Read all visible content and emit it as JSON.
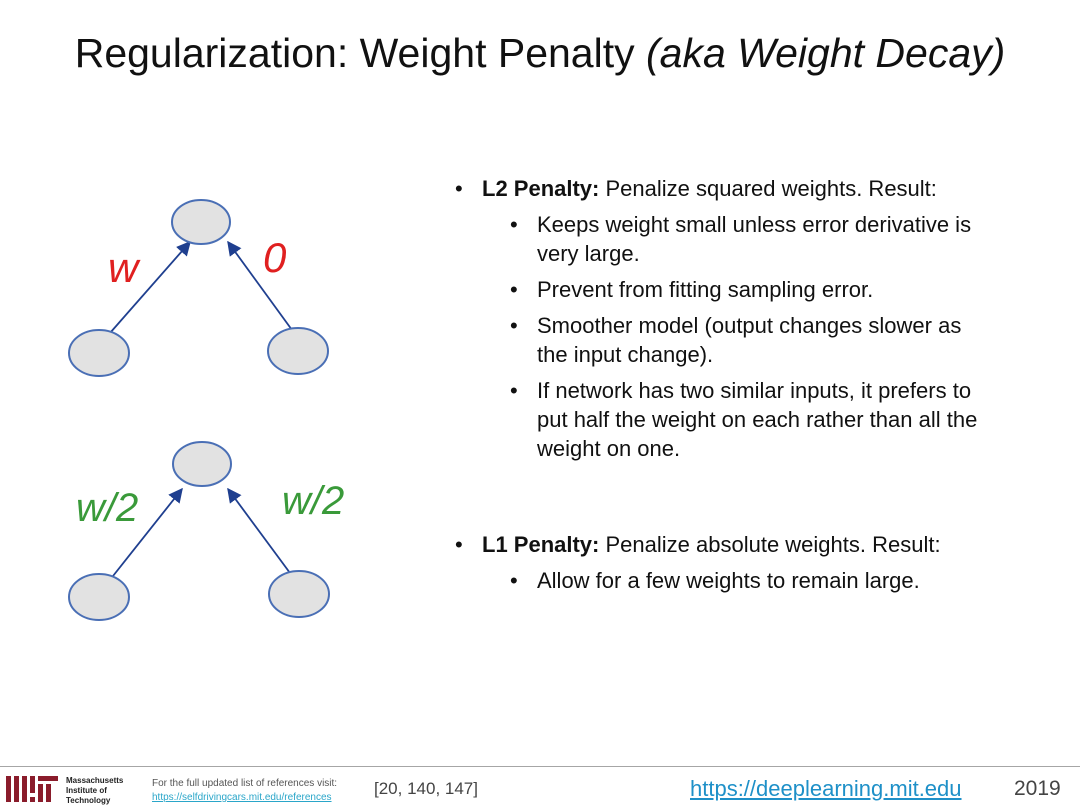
{
  "title": {
    "main": "Regularization: Weight Penalty ",
    "italic": "(aka Weight Decay)"
  },
  "diagram": {
    "top": {
      "left_weight": "w",
      "right_weight": "0",
      "color": "#e02020"
    },
    "bottom": {
      "left_weight": "w/2",
      "right_weight": "w/2",
      "color": "#3a9a3a"
    },
    "node_fill": "#e2e2e2",
    "node_stroke": "#4a6fb5",
    "arrow_color": "#1f3f8f"
  },
  "content": {
    "l2": {
      "label": "L2 Penalty:",
      "text": "Penalize squared weights. Result:",
      "items": [
        {
          "line1": "Keeps weight small unless error derivative is",
          "line2": "very large."
        },
        {
          "line1": "Prevent from fitting sampling error."
        },
        {
          "line1": "Smoother model (output changes slower as",
          "line2": "the input change)."
        },
        {
          "line1": "If network has two similar inputs, it prefers to",
          "line2": "put half the weight on each rather than all the",
          "line3": "weight on one."
        }
      ]
    },
    "l1": {
      "label": "L1 Penalty:",
      "text": "Penalize absolute weights. Result:",
      "items": [
        {
          "line1": "Allow for a few weights to remain large."
        }
      ]
    }
  },
  "footer": {
    "mit_name": [
      "Massachusetts",
      "Institute of",
      "Technology"
    ],
    "refs_text": "For the full updated list of references visit:",
    "refs_link": "https://selfdrivingcars.mit.edu/references",
    "citations": "[20, 140, 147]",
    "site": "https://deeplearning.mit.edu",
    "year": "2019"
  }
}
